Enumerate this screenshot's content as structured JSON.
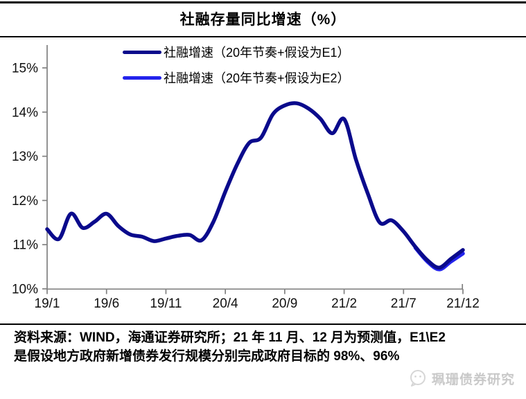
{
  "title": "社融存量同比增速（%）",
  "chart_data": {
    "type": "line",
    "title": "社融存量同比增速（%）",
    "x_tick_labels": [
      "19/1",
      "19/6",
      "19/11",
      "20/4",
      "20/9",
      "21/2",
      "21/7",
      "21/12"
    ],
    "x_tick_indices": [
      0,
      5,
      10,
      15,
      20,
      25,
      30,
      35
    ],
    "y_tick_labels": [
      "10%",
      "11%",
      "12%",
      "13%",
      "14%",
      "15%"
    ],
    "y_tick_values": [
      10,
      11,
      12,
      13,
      14,
      15
    ],
    "ylim": [
      10,
      15
    ],
    "x_range_months": 36,
    "grid": false,
    "legend_position": "top-center",
    "series": [
      {
        "name": "社融增速（20年节奏+假设为E1）",
        "color": "#0a0a8c",
        "x_start": 0,
        "values": [
          11.35,
          11.13,
          11.7,
          11.38,
          11.52,
          11.7,
          11.42,
          11.23,
          11.18,
          11.08,
          11.14,
          11.2,
          11.22,
          11.1,
          11.52,
          12.2,
          12.82,
          13.3,
          13.42,
          13.95,
          14.15,
          14.2,
          14.08,
          13.85,
          13.52,
          13.84,
          12.92,
          12.15,
          11.5,
          11.55,
          11.3,
          10.95,
          10.65,
          10.48,
          10.68,
          10.88
        ]
      },
      {
        "name": "社融增速（20年节奏+假设为E2）",
        "color": "#2323ec",
        "x_start": 31,
        "values": [
          10.93,
          10.62,
          10.44,
          10.62,
          10.8
        ]
      }
    ]
  },
  "footer": {
    "line1": "资料来源：WIND，海通证券研究所；21 年 11 月、12 月为预测值，E1\\E2",
    "line2": "是假设地方政府新增债券发行规模分别完成政府目标的 98%、96%"
  },
  "watermark": {
    "icon": "wechat-icon",
    "text": "珮珊债券研究"
  },
  "colors": {
    "axis": "#808080",
    "tick_text": "#111111",
    "rule": "#000000",
    "watermark": "#c9c9c9"
  }
}
